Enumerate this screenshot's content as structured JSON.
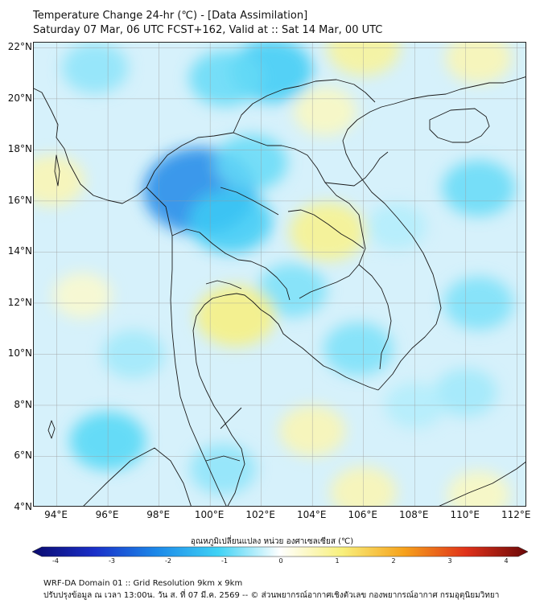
{
  "header": {
    "title": "Temperature Change 24-hr (℃) - [Data Assimilation]",
    "subtitle": "Saturday 07 Mar, 06 UTC FCST+162, Valid at :: Sat 14 Mar, 00 UTC"
  },
  "map": {
    "lat_labels": [
      "22°N",
      "20°N",
      "18°N",
      "16°N",
      "14°N",
      "12°N",
      "10°N",
      "8°N",
      "6°N",
      "4°N"
    ],
    "lon_labels": [
      "94°E",
      "96°E",
      "98°E",
      "100°E",
      "102°E",
      "104°E",
      "106°E",
      "108°E",
      "110°E",
      "112°E"
    ],
    "lat_range": [
      4,
      22.2
    ],
    "lon_range": [
      93.1,
      112.4
    ],
    "anomalies": [
      {
        "lat": 16.4,
        "lon": 99.6,
        "value": -2.0
      },
      {
        "lat": 15.2,
        "lon": 100.8,
        "value": -1.1
      },
      {
        "lat": 21.1,
        "lon": 102.4,
        "value": -1.1
      },
      {
        "lat": 20.8,
        "lon": 100.6,
        "value": -0.8
      },
      {
        "lat": 17.5,
        "lon": 101.6,
        "value": -0.8
      },
      {
        "lat": 12.5,
        "lon": 103.2,
        "value": -0.7
      },
      {
        "lat": 10.2,
        "lon": 105.8,
        "value": -0.7
      },
      {
        "lat": 16.5,
        "lon": 110.5,
        "value": -0.8
      },
      {
        "lat": 12.0,
        "lon": 110.5,
        "value": -0.7
      },
      {
        "lat": 21.2,
        "lon": 95.5,
        "value": -0.6
      },
      {
        "lat": 6.6,
        "lon": 96.0,
        "value": -0.9
      },
      {
        "lat": 10.0,
        "lon": 97.0,
        "value": -0.5
      },
      {
        "lat": 8.5,
        "lon": 110.0,
        "value": -0.5
      },
      {
        "lat": 5.5,
        "lon": 100.5,
        "value": -0.6
      },
      {
        "lat": 8.0,
        "lon": 108.0,
        "value": -0.4
      },
      {
        "lat": 11.5,
        "lon": 101.0,
        "value": 1.0
      },
      {
        "lat": 14.8,
        "lon": 104.6,
        "value": 0.9
      },
      {
        "lat": 22.0,
        "lon": 106.0,
        "value": 0.8
      },
      {
        "lat": 21.6,
        "lon": 110.5,
        "value": 0.6
      },
      {
        "lat": 19.5,
        "lon": 104.5,
        "value": 0.5
      },
      {
        "lat": 16.8,
        "lon": 93.8,
        "value": 0.6
      },
      {
        "lat": 7.0,
        "lon": 104.0,
        "value": 0.6
      },
      {
        "lat": 4.6,
        "lon": 106.0,
        "value": 0.6
      },
      {
        "lat": 4.5,
        "lon": 110.5,
        "value": 0.5
      },
      {
        "lat": 12.3,
        "lon": 95.0,
        "value": 0.4
      },
      {
        "lat": 15.0,
        "lon": 107.3,
        "value": -0.4
      }
    ]
  },
  "colorbar": {
    "title": "อุณหภูมิเปลี่ยนแปลง หน่วย องศาเซลเซียส (℃)",
    "min": -4,
    "max": 4,
    "ticks": [
      "-4",
      "-3",
      "-2",
      "-1",
      "0",
      "1",
      "2",
      "3",
      "4"
    ],
    "stops": [
      "#0a0a6e",
      "#1a2fc8",
      "#1c88e8",
      "#3fd2f5",
      "#ffffff",
      "#f8f07c",
      "#f6a21c",
      "#e0321a",
      "#6a0808"
    ]
  },
  "footer": {
    "line1": "WRF-DA Domain 01 :: Grid Resolution 9km x 9km",
    "line2": "ปรับปรุงข้อมูล ณ เวลา 13:00น. วัน ส. ที่ 07 มี.ค. 2569 -- © ส่วนพยากรณ์อากาศเชิงตัวเลข กองพยากรณ์อากาศ กรมอุตุนิยมวิทยา"
  }
}
